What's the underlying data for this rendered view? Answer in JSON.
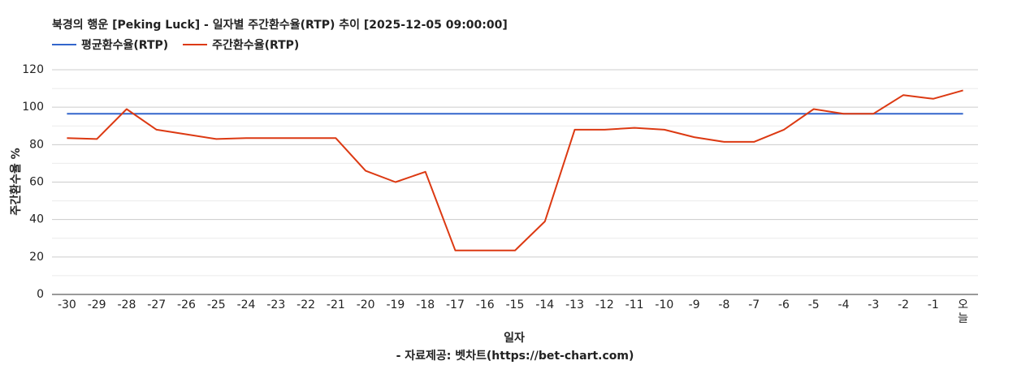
{
  "chart_data": {
    "type": "line",
    "title": "북경의 행운 [Peking Luck] - 일자별 주간환수율(RTP) 추이 [2025-12-05 09:00:00]",
    "xlabel": "일자",
    "ylabel": "주간환수율 %",
    "categories": [
      "-30",
      "-29",
      "-28",
      "-27",
      "-26",
      "-25",
      "-24",
      "-23",
      "-22",
      "-21",
      "-20",
      "-19",
      "-18",
      "-17",
      "-16",
      "-15",
      "-14",
      "-13",
      "-12",
      "-11",
      "-10",
      "-9",
      "-8",
      "-7",
      "-6",
      "-5",
      "-4",
      "-3",
      "-2",
      "-1",
      "오늘"
    ],
    "ylim": [
      0,
      120
    ],
    "yticks": [
      0,
      20,
      40,
      60,
      80,
      100,
      120
    ],
    "grid": true,
    "legend_position": "top-left",
    "series": [
      {
        "name": "평균환수율(RTP)",
        "color": "#3366cc",
        "values": [
          96.5,
          96.5,
          96.5,
          96.5,
          96.5,
          96.5,
          96.5,
          96.5,
          96.5,
          96.5,
          96.5,
          96.5,
          96.5,
          96.5,
          96.5,
          96.5,
          96.5,
          96.5,
          96.5,
          96.5,
          96.5,
          96.5,
          96.5,
          96.5,
          96.5,
          96.5,
          96.5,
          96.5,
          96.5,
          96.5,
          96.5
        ]
      },
      {
        "name": "주간환수율(RTP)",
        "color": "#dc3912",
        "values": [
          83.5,
          83,
          99,
          88,
          85.5,
          83,
          83.5,
          83.5,
          83.5,
          83.5,
          66,
          60,
          65.5,
          23.5,
          23.5,
          23.5,
          39,
          88,
          88,
          89,
          88,
          84,
          81.5,
          81.5,
          88,
          99,
          96.5,
          96.5,
          106.5,
          104.5,
          109
        ]
      }
    ]
  },
  "source_note": "- 자료제공: 벳차트(https://bet-chart.com)"
}
